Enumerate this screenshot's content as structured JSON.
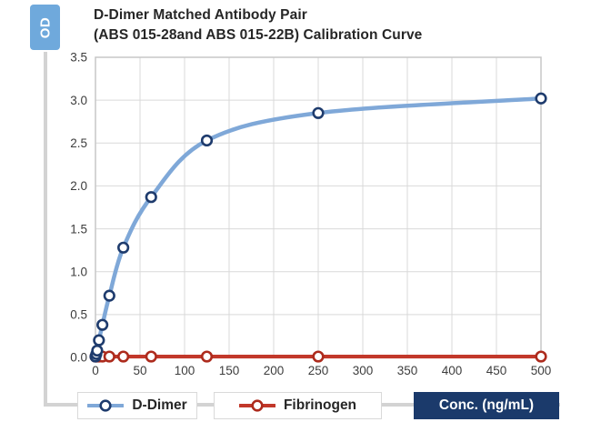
{
  "header": {
    "y_axis_badge": "OD",
    "title_line1": "D-Dimer Matched Antibody Pair",
    "title_line2": "(ABS 015-28and ABS 015-22B) Calibration Curve"
  },
  "legend": {
    "items": [
      {
        "label": "D-Dimer",
        "line_color": "#7FA8D8",
        "marker_stroke": "#1E3B6D"
      },
      {
        "label": "Fibrinogen",
        "line_color": "#C2382A",
        "marker_stroke": "#AD2B1D"
      }
    ],
    "x_axis_badge": "Conc. (ng/mL)"
  },
  "colors": {
    "od_badge_bg": "#6FA9DC",
    "conc_badge_bg": "#1B3A6B",
    "grid": "#D9D9D9",
    "frame": "#C7C7C7",
    "spine": "#D3D3D3",
    "tick_text": "#3D3D3D",
    "title_text": "#262626"
  },
  "chart_data": {
    "type": "line",
    "title": "D-Dimer Matched Antibody Pair (ABS 015-28and ABS 015-22B) Calibration Curve",
    "xlabel": "Conc. (ng/mL)",
    "ylabel": "OD",
    "xlim": [
      0,
      500
    ],
    "ylim": [
      0,
      3.5
    ],
    "x_ticks": [
      0,
      50,
      100,
      150,
      200,
      250,
      300,
      350,
      400,
      450,
      500
    ],
    "y_ticks": [
      0.0,
      0.5,
      1.0,
      1.5,
      2.0,
      2.5,
      3.0,
      3.5
    ],
    "grid": true,
    "legend_position": "bottom",
    "series": [
      {
        "name": "D-Dimer",
        "x": [
          0,
          0.98,
          1.95,
          3.9,
          7.8,
          15.6,
          31.25,
          62.5,
          125,
          250,
          500
        ],
        "y": [
          0.01,
          0.04,
          0.08,
          0.2,
          0.38,
          0.72,
          1.28,
          1.87,
          2.53,
          2.85,
          3.02
        ],
        "color": "#7FA8D8",
        "marker": "open-circle",
        "marker_stroke": "#1E3B6D",
        "line_width": 4.5,
        "smooth": true
      },
      {
        "name": "Fibrinogen",
        "x": [
          0,
          0.98,
          1.95,
          3.9,
          7.8,
          15.6,
          31.25,
          62.5,
          125,
          250,
          500
        ],
        "y": [
          0.01,
          0.01,
          0.01,
          0.01,
          0.01,
          0.01,
          0.01,
          0.01,
          0.01,
          0.01,
          0.01
        ],
        "color": "#C2382A",
        "marker": "open-circle",
        "marker_stroke": "#AD2B1D",
        "line_width": 4.2,
        "smooth": false
      }
    ]
  }
}
